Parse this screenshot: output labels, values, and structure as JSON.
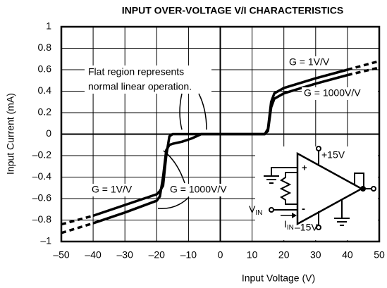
{
  "chart_data": {
    "type": "line",
    "title": "INPUT OVER-VOLTAGE V/I CHARACTERISTICS",
    "xlabel": "Input Voltage (V)",
    "ylabel": "Input Current (mA)",
    "x": [
      -50,
      -40,
      -30,
      -20,
      -19,
      -18,
      -17,
      -16,
      -15,
      -12,
      -9,
      -6,
      0,
      10,
      14,
      15,
      16,
      17,
      20,
      30,
      40,
      50
    ],
    "series": [
      {
        "name": "G = 1V/V",
        "color": "#000000",
        "values": [
          -0.84,
          -0.76,
          -0.66,
          -0.56,
          -0.53,
          -0.48,
          -0.2,
          -0.02,
          0,
          0,
          0,
          0,
          0,
          0,
          0,
          0.05,
          0.3,
          0.38,
          0.43,
          0.52,
          0.6,
          0.68
        ]
      },
      {
        "name": "G = 1000V/V",
        "color": "#000000",
        "values": [
          -0.92,
          -0.83,
          -0.73,
          -0.62,
          -0.58,
          -0.4,
          -0.15,
          -0.1,
          -0.09,
          -0.07,
          -0.04,
          0,
          0,
          0,
          0,
          0.03,
          0.25,
          0.33,
          0.38,
          0.47,
          0.55,
          0.62
        ]
      }
    ],
    "dashed_beyond": 40,
    "xlim": [
      -50,
      50
    ],
    "xticks": [
      {
        "value": -50,
        "label": "–50"
      },
      {
        "value": -40,
        "label": "–40"
      },
      {
        "value": -30,
        "label": "–30"
      },
      {
        "value": -20,
        "label": "–20"
      },
      {
        "value": -10,
        "label": "–10"
      },
      0,
      10,
      20,
      30,
      40,
      50
    ],
    "ylim": [
      -1,
      1
    ],
    "yticks": [
      1,
      0.8,
      0.6,
      0.4,
      0.2,
      0,
      {
        "value": -0.2,
        "label": "–0.2"
      },
      {
        "value": -0.4,
        "label": "–0.4"
      },
      {
        "value": -0.6,
        "label": "–0.6"
      },
      {
        "value": -0.8,
        "label": "–0.8"
      },
      {
        "value": -1,
        "label": "–1"
      }
    ],
    "grid": true,
    "annotations": [
      "Flat region represents",
      "normal linear operation."
    ],
    "inset": {
      "positive_supply": "+15V",
      "negative_supply": "–15V",
      "input_voltage": "V",
      "input_voltage_sub": "IN",
      "input_current": "I",
      "input_current_sub": "IN"
    }
  }
}
